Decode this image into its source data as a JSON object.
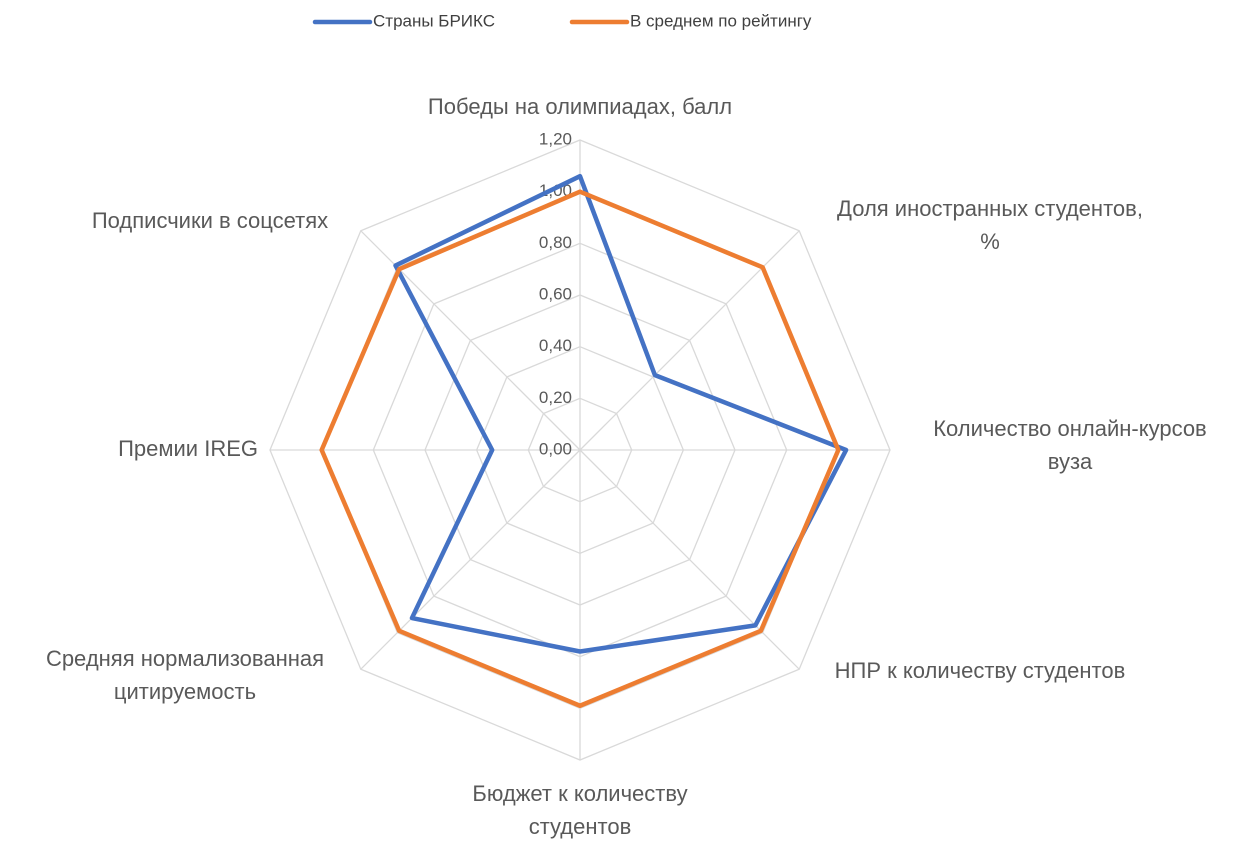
{
  "chart_data": {
    "type": "radar",
    "categories": [
      [
        "Победы на олимпиадах, балл"
      ],
      [
        "Доля иностранных студентов,",
        "%"
      ],
      [
        "Количество онлайн-курсов",
        "вуза"
      ],
      [
        "НПР к количеству студентов"
      ],
      [
        "Бюджет к количеству",
        "студентов"
      ],
      [
        "Средняя нормализованная",
        "цитируемость"
      ],
      [
        "Премии IREG"
      ],
      [
        "Подписчики в соцсетях"
      ]
    ],
    "series": [
      {
        "name": "Страны БРИКС",
        "color": "#4472c4",
        "values": [
          1.06,
          0.41,
          1.03,
          0.96,
          0.78,
          0.92,
          0.34,
          1.01
        ]
      },
      {
        "name": "В среднем по рейтингу",
        "color": "#ed7d31",
        "values": [
          1.0,
          1.0,
          1.0,
          0.99,
          0.99,
          0.99,
          1.0,
          0.99
        ]
      }
    ],
    "ylim": [
      0,
      1.2
    ],
    "yticks": [
      {
        "value": 0,
        "label": "0,00"
      },
      {
        "value": 0.2,
        "label": "0,20"
      },
      {
        "value": 0.4,
        "label": "0,40"
      },
      {
        "value": 0.6,
        "label": "0,60"
      },
      {
        "value": 0.8,
        "label": "0,80"
      },
      {
        "value": 1.0,
        "label": "1,00"
      },
      {
        "value": 1.2,
        "label": "1,20"
      }
    ],
    "grid": true,
    "legend": "top"
  }
}
